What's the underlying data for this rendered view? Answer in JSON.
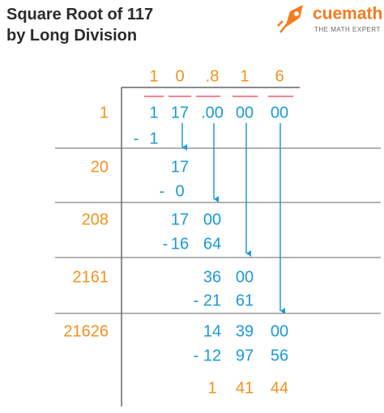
{
  "title": [
    "Square Root of 117",
    "by Long Division"
  ],
  "logo": {
    "brand": "cuemath",
    "tagline": "THE MATH EXPERT"
  },
  "quotient": [
    "1",
    "0",
    ".8",
    "1",
    "6"
  ],
  "dividend": [
    "1",
    "17",
    ".00",
    "00",
    "00"
  ],
  "divisors": [
    "1",
    "20",
    "208",
    "2161",
    "21626"
  ],
  "minus": "-",
  "work": [
    {
      "subtract": [
        "1"
      ]
    },
    {
      "bring": [
        "17"
      ],
      "subtract": [
        "0"
      ]
    },
    {
      "bring": [
        "17",
        "00"
      ],
      "subtract": [
        "16",
        "64"
      ]
    },
    {
      "bring": [
        "36",
        "00"
      ],
      "subtract": [
        "21",
        "61"
      ]
    },
    {
      "bring": [
        "14",
        "39",
        "00"
      ],
      "subtract": [
        "12",
        "97",
        "56"
      ]
    }
  ],
  "remainder": [
    "1",
    "41",
    "44"
  ]
}
